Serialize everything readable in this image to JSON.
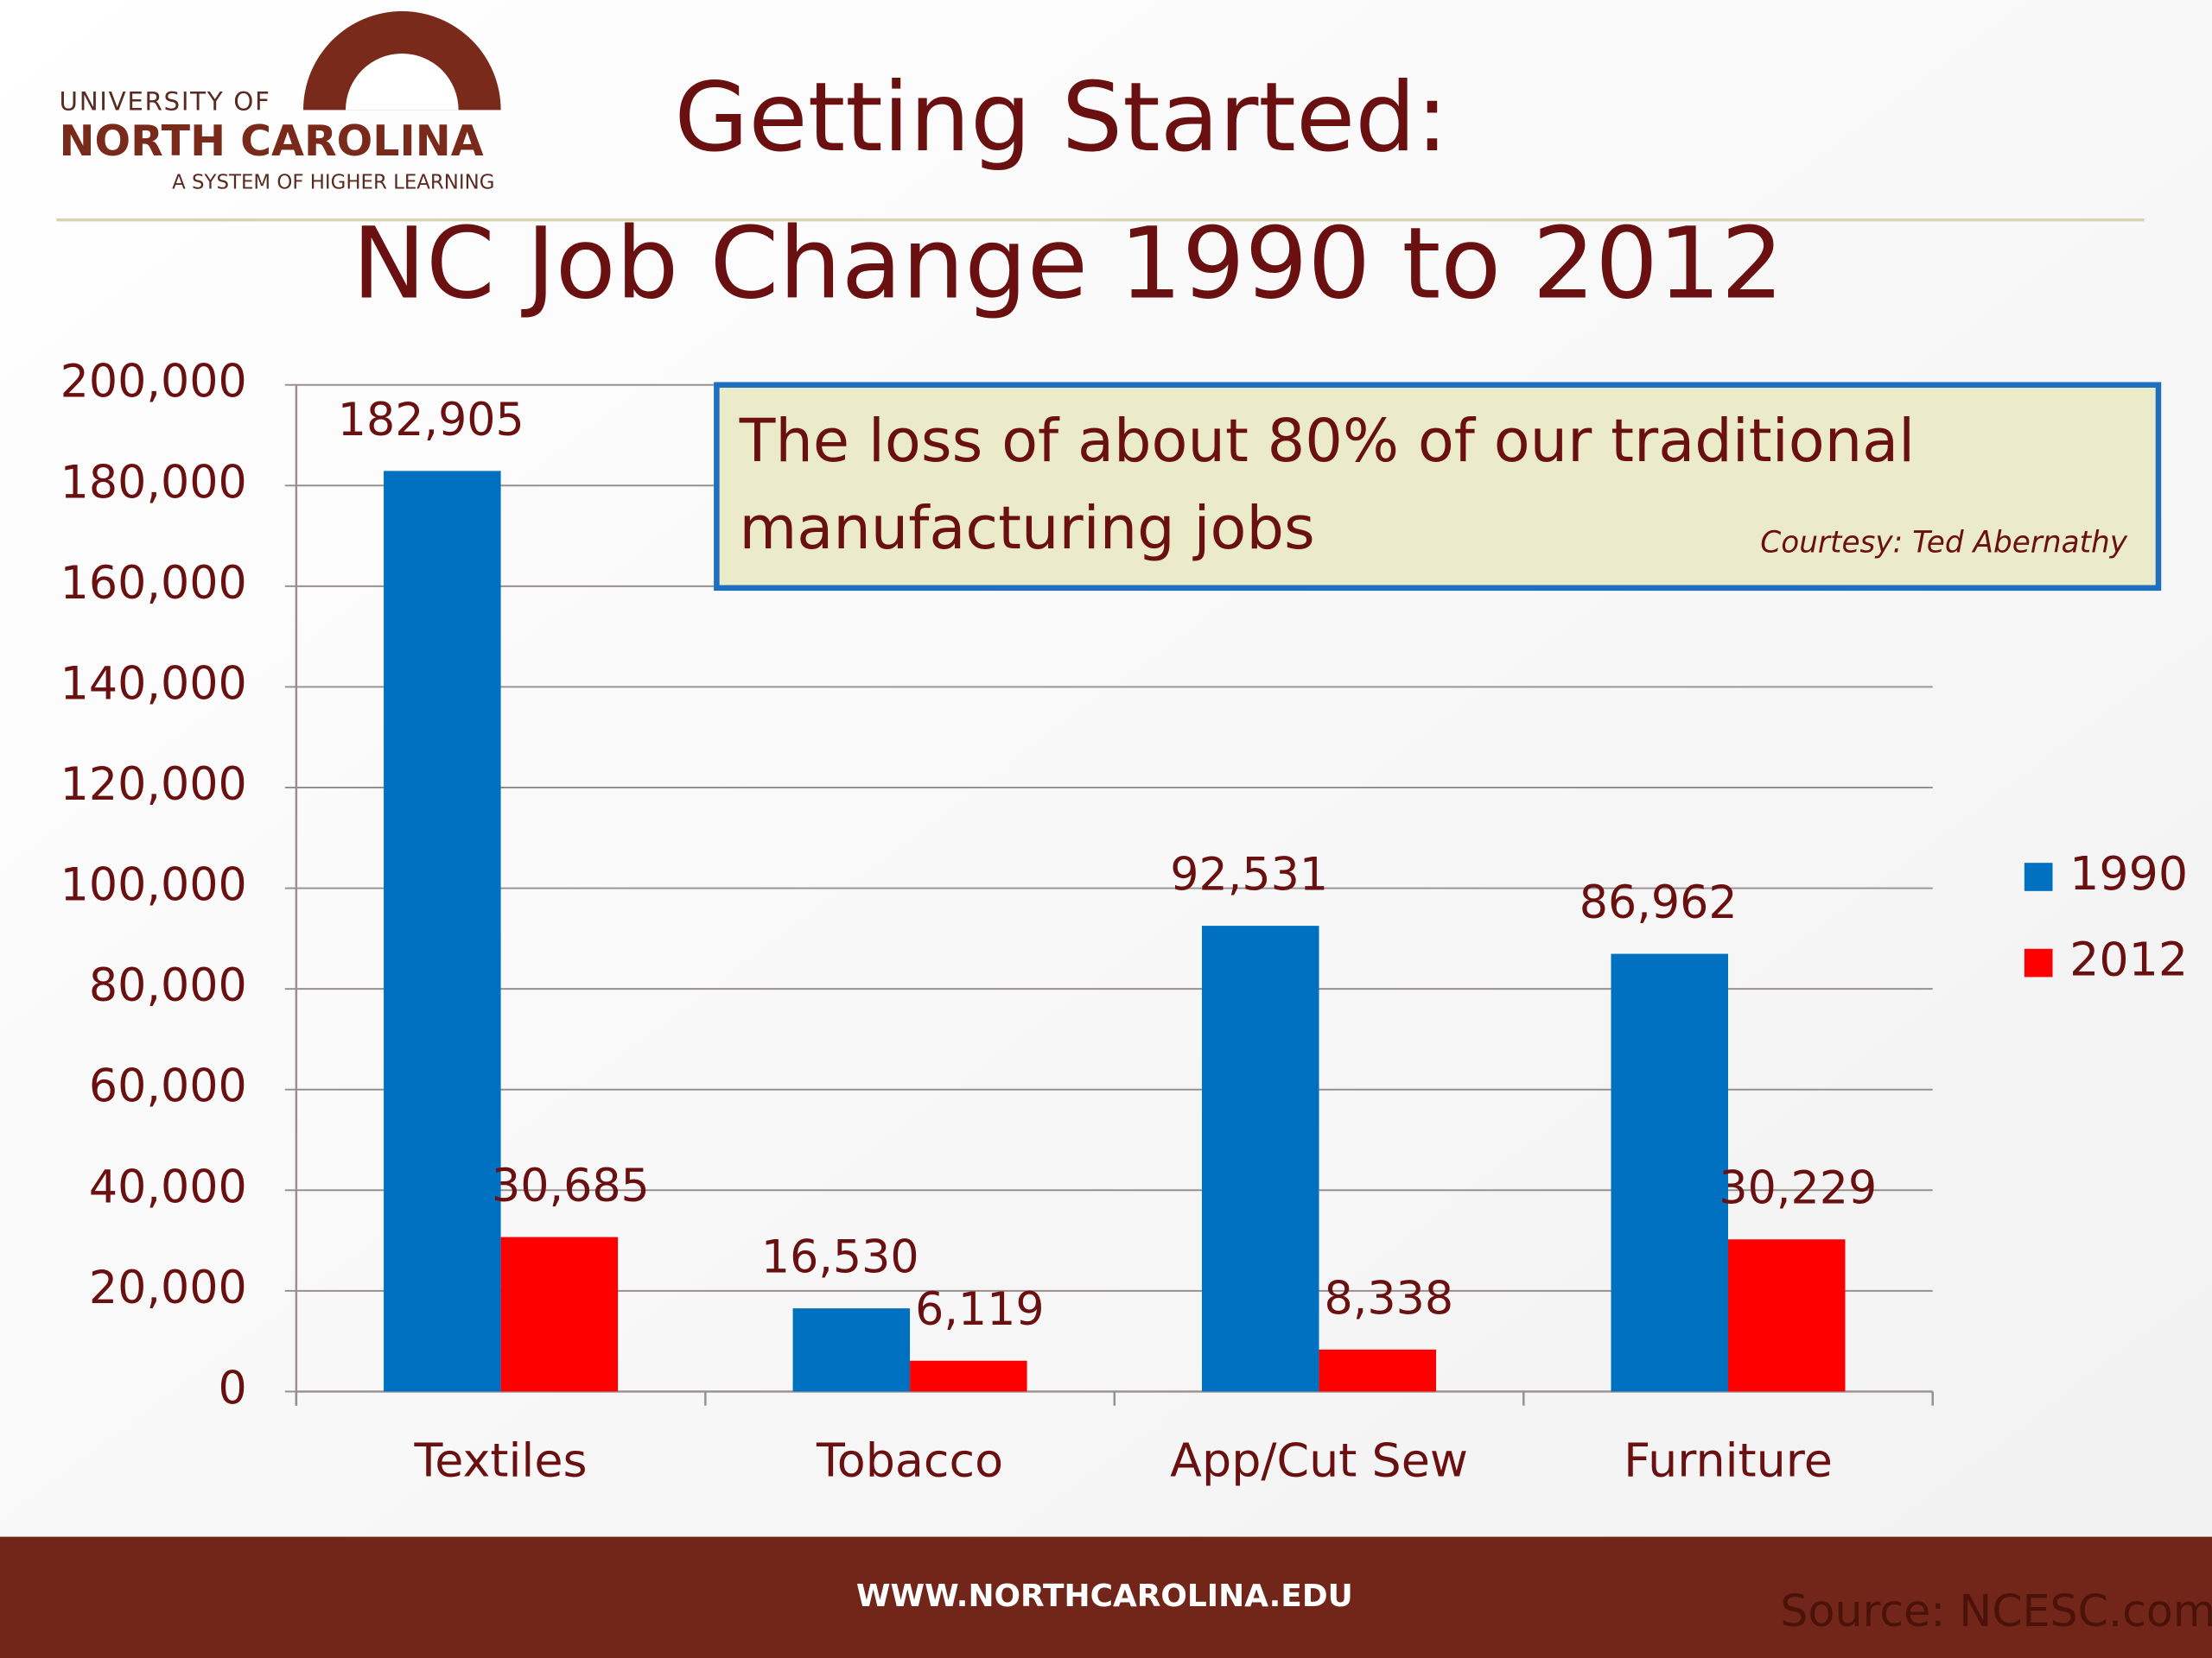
{
  "header": {
    "logo_top": "UNIVERSITY OF",
    "logo_main": "NORTH CAROLINA",
    "logo_sub": "A SYSTEM OF HIGHER LEARNING",
    "heading": "Getting Started:"
  },
  "chart_data": {
    "type": "bar",
    "title": "NC Job Change 1990 to 2012",
    "categories": [
      "Textiles",
      "Tobacco",
      "App/Cut Sew",
      "Furniture"
    ],
    "series": [
      {
        "name": "1990",
        "color": "#0070c0",
        "values": [
          182905,
          16530,
          92531,
          86962
        ],
        "value_labels": [
          "182,905",
          "16,530",
          "92,531",
          "86,962"
        ]
      },
      {
        "name": "2012",
        "color": "#ff0000",
        "values": [
          30685,
          6119,
          8338,
          30229
        ],
        "value_labels": [
          "30,685",
          "6,119",
          "8,338",
          "30,229"
        ]
      }
    ],
    "ylim": [
      0,
      200000
    ],
    "yticks": [
      0,
      {
        "value": 20000,
        "label": "20,000"
      },
      {
        "value": 40000,
        "label": "40,000"
      },
      {
        "value": 60000,
        "label": "60,000"
      },
      {
        "value": 80000,
        "label": "80,000"
      },
      {
        "value": 100000,
        "label": "100,000"
      },
      {
        "value": 120000,
        "label": "120,000"
      },
      {
        "value": 140000,
        "label": "140,000"
      },
      {
        "value": 160000,
        "label": "160,000"
      },
      {
        "value": 180000,
        "label": "180,000"
      },
      {
        "value": 200000,
        "label": "200,000"
      }
    ],
    "grid": true,
    "legend": "right",
    "annotation": {
      "text": "The loss of about 80% of our traditional manufacturing jobs",
      "credit": "Courtesy: Ted Abernathy"
    }
  },
  "footer": {
    "url": "WWW.NORTHCAROLINA.EDU",
    "source": "Source: NCESC.com"
  }
}
